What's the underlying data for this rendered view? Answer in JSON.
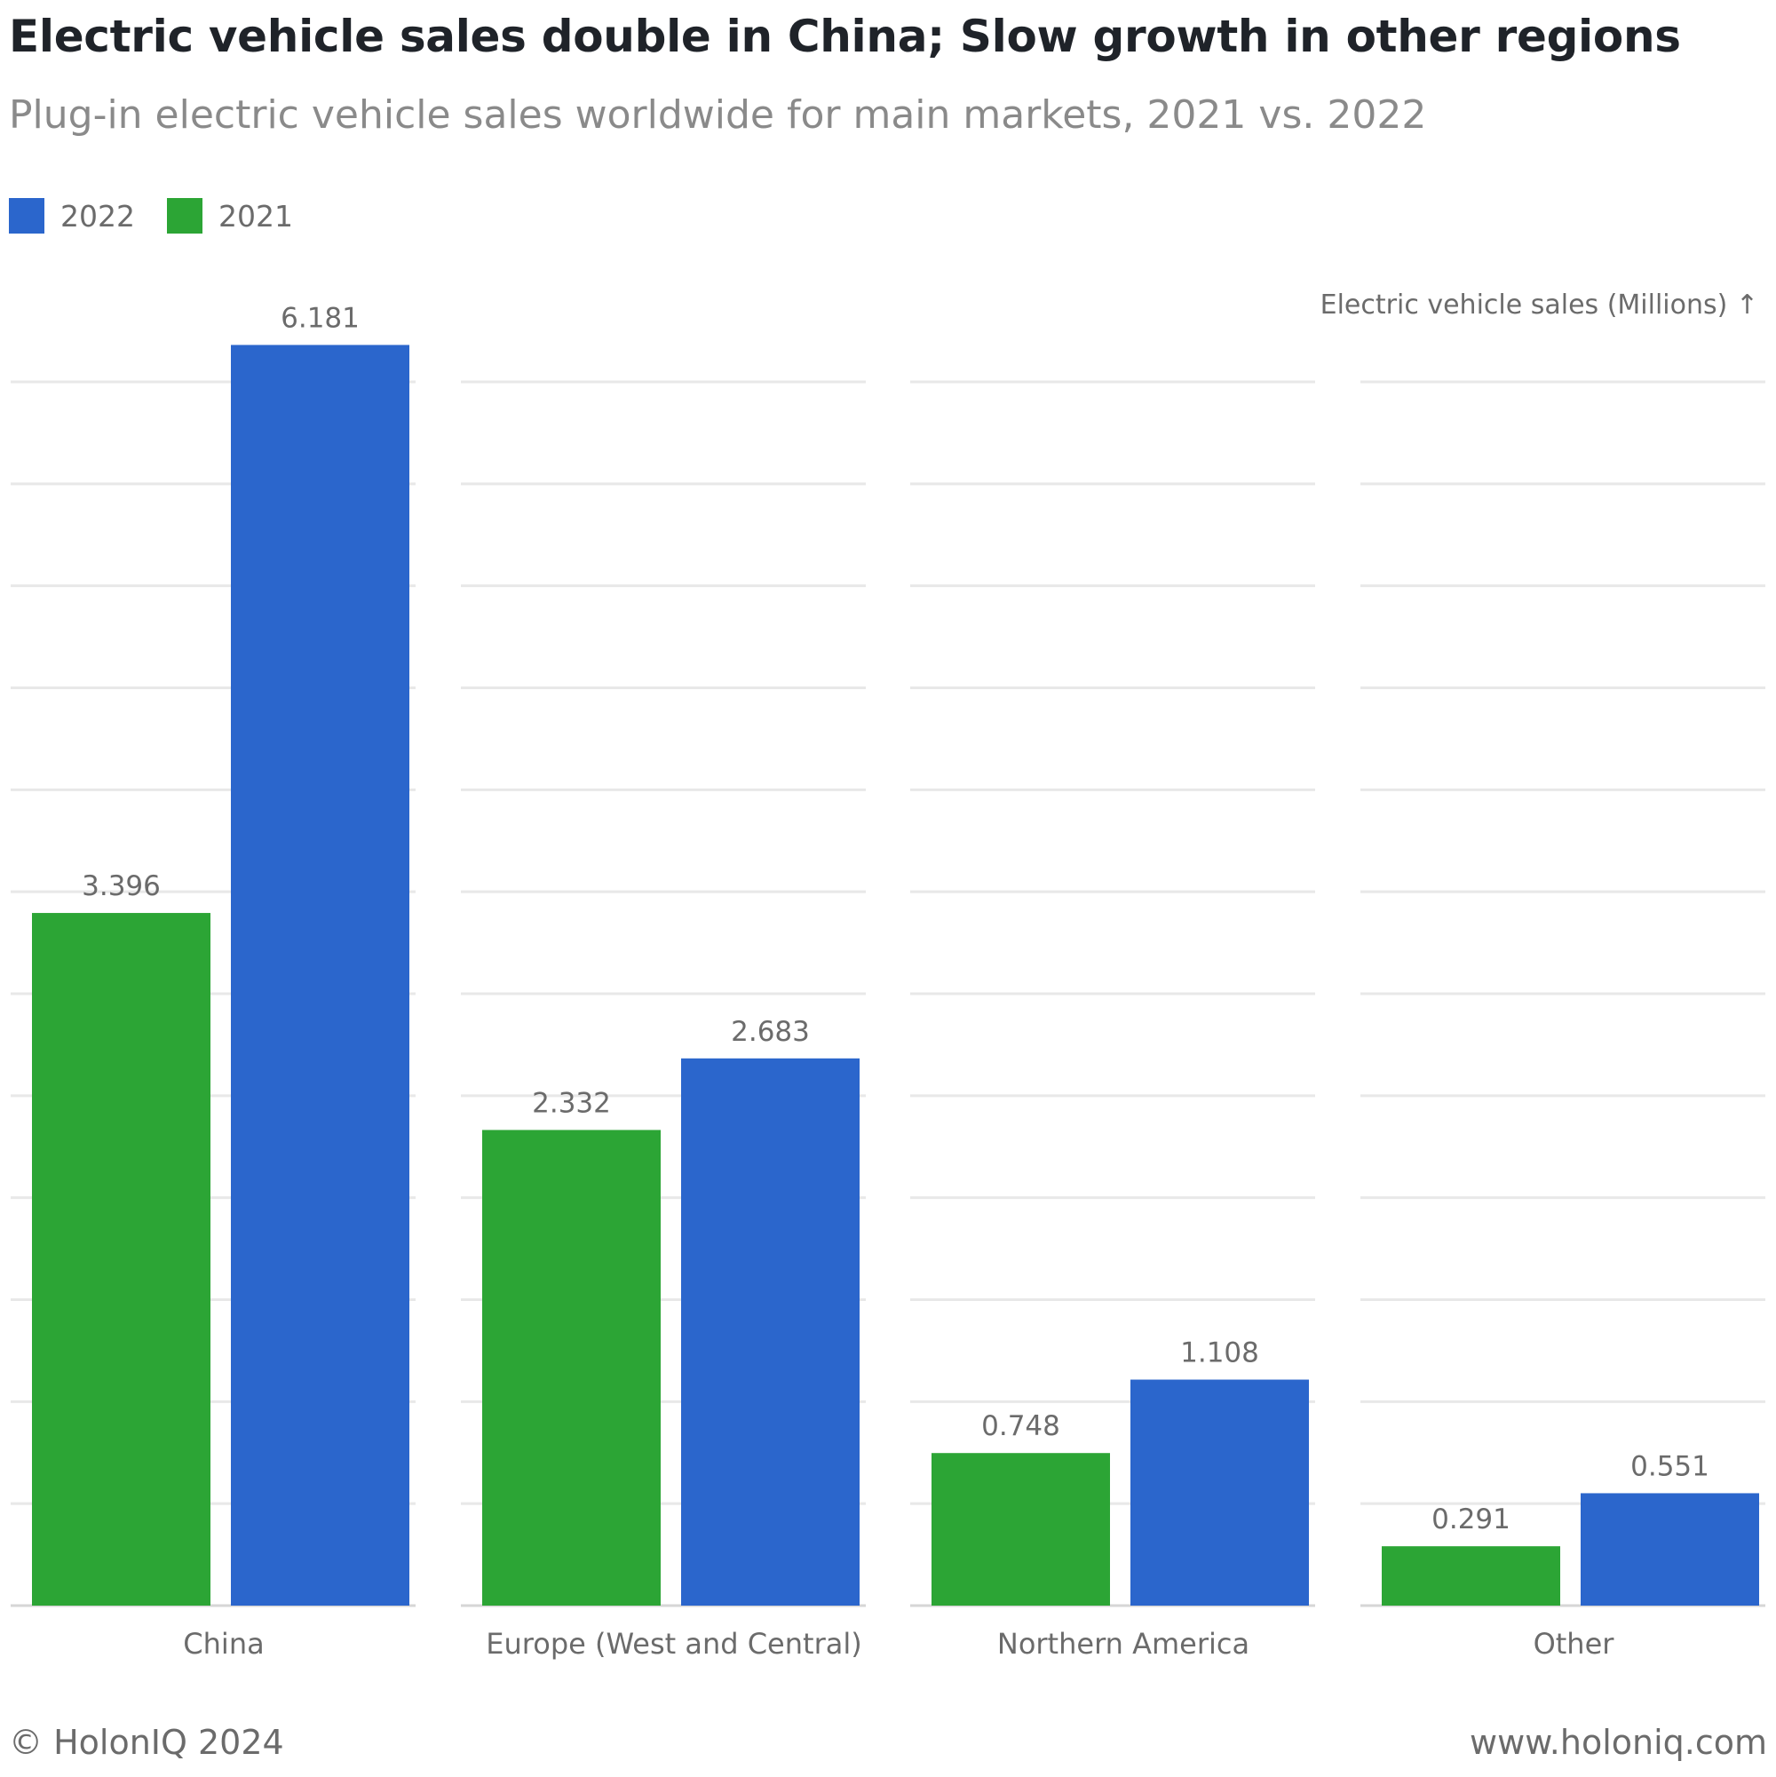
{
  "header": {
    "title": "Electric vehicle sales double in China; Slow growth in other regions",
    "subtitle": "Plug-in electric vehicle sales worldwide for main markets, 2021 vs. 2022"
  },
  "legend": [
    {
      "label": "2022",
      "color": "#2b66cc"
    },
    {
      "label": "2021",
      "color": "#2ca535"
    }
  ],
  "footer": {
    "copyright": "© HolonIQ 2024",
    "website": "www.holoniq.com"
  },
  "chart_data": {
    "type": "bar",
    "title": "Electric vehicle sales double in China; Slow growth in other regions",
    "subtitle": "Plug-in electric vehicle sales worldwide for main markets, 2021 vs. 2022",
    "ylabel": "Electric vehicle sales (Millions) ↑",
    "xlabel": "",
    "categories": [
      "China",
      "Europe (West and Central)",
      "Northern America",
      "Other"
    ],
    "series": [
      {
        "name": "2021",
        "color": "#2ca535",
        "values": [
          3.396,
          2.332,
          0.748,
          0.291
        ],
        "labels": [
          "3.396",
          "2.332",
          "0.748",
          "0.291"
        ]
      },
      {
        "name": "2022",
        "color": "#2b66cc",
        "values": [
          6.181,
          2.683,
          1.108,
          0.551
        ],
        "labels": [
          "6.181",
          "2.683",
          "1.108",
          "0.551"
        ]
      }
    ],
    "ylim": [
      0,
      6.0
    ],
    "grid": true,
    "gridlines": 12,
    "legend_position": "top-left"
  }
}
